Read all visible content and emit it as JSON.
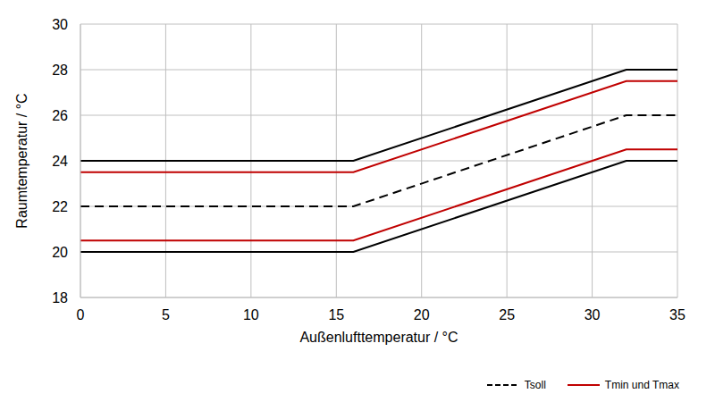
{
  "chart_data": {
    "type": "line",
    "x_label": "Außenlufttemperatur / °C",
    "y_label": "Raumtemperatur / °C",
    "x": [
      0,
      16,
      32,
      35
    ],
    "series": [
      {
        "color": "#000000",
        "line_style": "solid",
        "values": [
          24,
          24,
          28,
          28
        ]
      },
      {
        "name": "Tmin und Tmax",
        "color": "#c00000",
        "line_style": "solid",
        "values": [
          23.5,
          23.5,
          27.5,
          27.5
        ]
      },
      {
        "name": "Tsoll",
        "color": "#000000",
        "line_style": "dashed",
        "values": [
          22,
          22,
          26,
          26
        ]
      },
      {
        "name": "Tmin und Tmax",
        "color": "#c00000",
        "line_style": "solid",
        "values": [
          20.5,
          20.5,
          24.5,
          24.5
        ]
      },
      {
        "color": "#000000",
        "line_style": "solid",
        "values": [
          20,
          20,
          24,
          24
        ]
      }
    ],
    "xlim": [
      0,
      35
    ],
    "xticks": [
      0,
      5,
      10,
      15,
      20,
      25,
      30,
      35
    ],
    "ylim": [
      18,
      30
    ],
    "yticks": [
      18,
      20,
      22,
      24,
      26,
      28,
      30
    ],
    "grid": true,
    "legend": "bottom right"
  }
}
